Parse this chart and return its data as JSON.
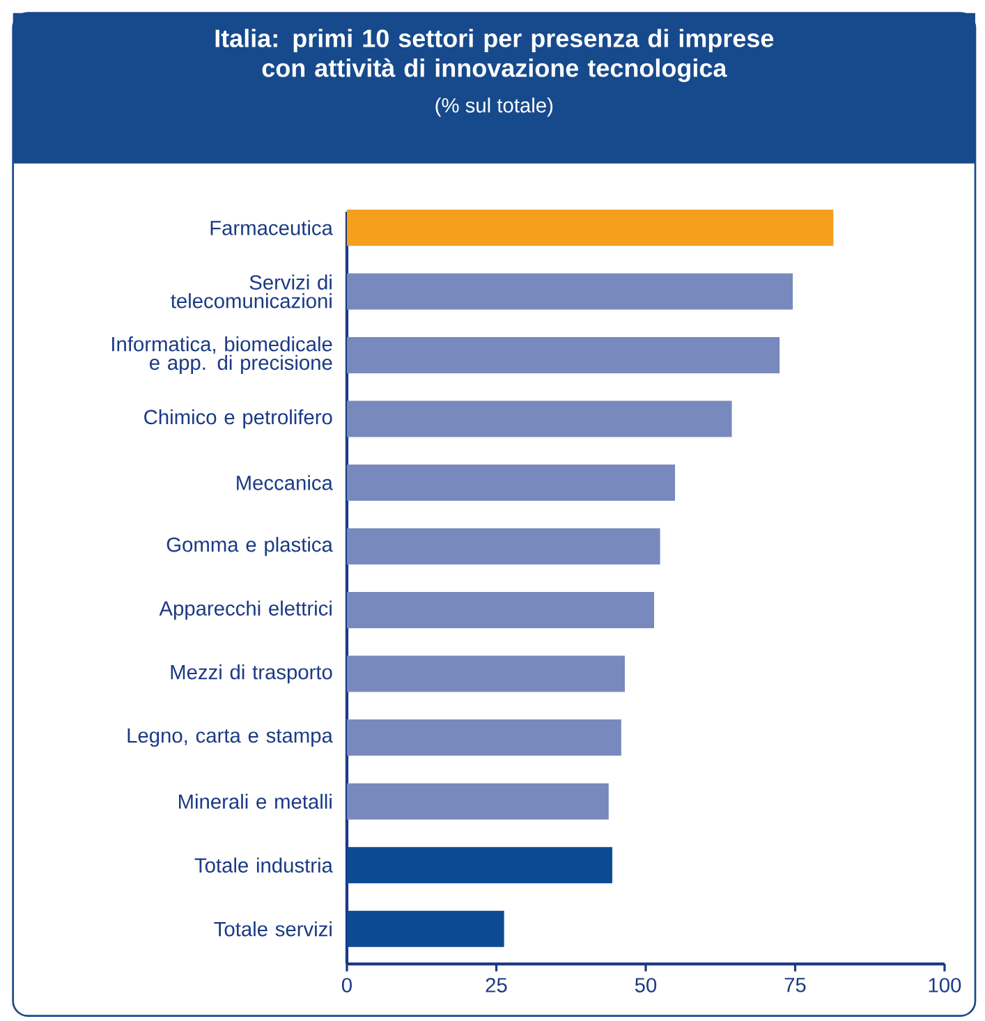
{
  "chart_data": {
    "type": "bar",
    "orientation": "horizontal",
    "title": "Italia: primi 10 settori per presenza di imprese con attività di innovazione tecnologica",
    "subtitle": "(% sul totale)",
    "categories": [
      "Farmaceutica",
      "Servizi di telecomunicazioni",
      "Informatica, biomedicale e app. di precisione",
      "Chimico e petrolifero",
      "Meccanica",
      "Gomma e plastica",
      "Apparecchi elettrici",
      "Mezzi di trasporto",
      "Legno, carta e stampa",
      "Minerali e metalli",
      "Totale industria",
      "Totale servizi"
    ],
    "values": [
      81.4,
      74.6,
      72.4,
      64.4,
      54.9,
      52.4,
      51.4,
      46.5,
      45.9,
      43.8,
      44.4,
      26.3
    ],
    "colors": [
      "#f5a01c",
      "#7889bd",
      "#7889bd",
      "#7889bd",
      "#7889bd",
      "#7889bd",
      "#7889bd",
      "#7889bd",
      "#7889bd",
      "#7889bd",
      "#0c4b94",
      "#0c4b94"
    ],
    "xlim": [
      0,
      100
    ],
    "xticks": [
      0,
      25,
      50,
      75,
      100
    ],
    "grid": false
  }
}
